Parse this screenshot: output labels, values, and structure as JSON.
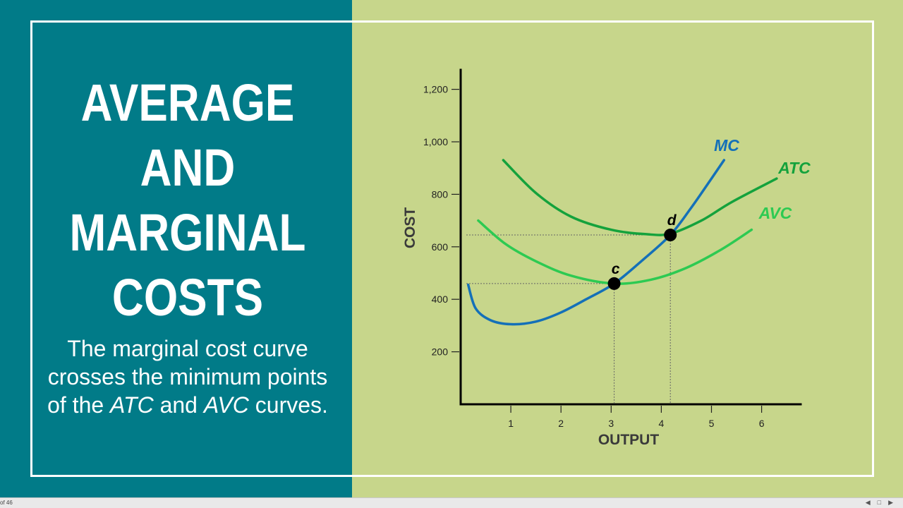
{
  "slide": {
    "title_lines": [
      "AVERAGE",
      "AND",
      "MARGINAL",
      "COSTS"
    ],
    "body_part1": "The marginal cost curve crosses the minimum points of the ",
    "body_atc": "ATC",
    "body_part2": " and ",
    "body_avc": "AVC",
    "body_part3": " curves."
  },
  "status_bar": {
    "page_text": "of 46",
    "icons": [
      "prev-icon",
      "fit-icon",
      "next-icon"
    ]
  },
  "colors": {
    "teal_panel": "#017b88",
    "green_panel": "#c7d68b",
    "mc_curve": "#1470b8",
    "atc_curve": "#14a23c",
    "avc_curve": "#2dca52"
  },
  "chart_data": {
    "type": "line",
    "xlabel": "OUTPUT",
    "ylabel": "COST",
    "x_ticks": [
      1,
      2,
      3,
      4,
      5,
      6
    ],
    "y_ticks": [
      200,
      400,
      600,
      800,
      1000,
      1200
    ],
    "y_tick_labels": [
      "200",
      "400",
      "600",
      "800",
      "1,000",
      "1,200"
    ],
    "xlim": [
      0,
      6.8
    ],
    "ylim": [
      0,
      1270
    ],
    "grid": false,
    "series": [
      {
        "name": "MC",
        "color": "#1470b8",
        "points": [
          [
            0.15,
            455
          ],
          [
            0.3,
            365
          ],
          [
            0.6,
            320
          ],
          [
            1.0,
            305
          ],
          [
            1.5,
            315
          ],
          [
            2.0,
            350
          ],
          [
            2.5,
            400
          ],
          [
            3.06,
            460
          ],
          [
            3.6,
            545
          ],
          [
            4.18,
            645
          ],
          [
            4.6,
            750
          ],
          [
            5.0,
            860
          ],
          [
            5.25,
            930
          ]
        ]
      },
      {
        "name": "ATC",
        "color": "#14a23c",
        "points": [
          [
            0.85,
            930
          ],
          [
            1.5,
            805
          ],
          [
            2.2,
            715
          ],
          [
            3.0,
            665
          ],
          [
            3.7,
            648
          ],
          [
            4.18,
            650
          ],
          [
            4.8,
            700
          ],
          [
            5.4,
            770
          ],
          [
            6.3,
            860
          ]
        ]
      },
      {
        "name": "AVC",
        "color": "#2dca52",
        "points": [
          [
            0.35,
            700
          ],
          [
            0.9,
            610
          ],
          [
            1.5,
            545
          ],
          [
            2.2,
            490
          ],
          [
            3.06,
            460
          ],
          [
            3.8,
            475
          ],
          [
            4.5,
            520
          ],
          [
            5.2,
            590
          ],
          [
            5.8,
            665
          ]
        ]
      }
    ],
    "points": [
      {
        "label": "c",
        "x": 3.06,
        "y": 460
      },
      {
        "label": "d",
        "x": 4.18,
        "y": 645
      }
    ]
  }
}
